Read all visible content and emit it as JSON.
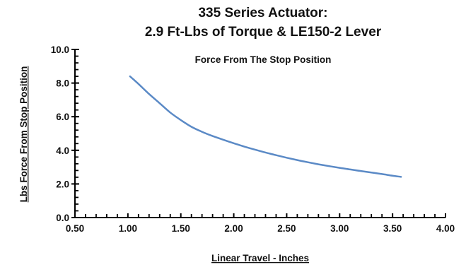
{
  "chart_data": {
    "type": "line",
    "title_line1": "335 Series Actuator:",
    "title_line2": "2.9 Ft-Lbs of Torque & LE150-2 Lever",
    "annotation": "Force From The Stop Position",
    "xlabel": "Linear Travel - Inches",
    "ylabel": "Lbs Force From Stop Position",
    "xlim": [
      0.5,
      4.0
    ],
    "ylim": [
      0.0,
      10.0
    ],
    "x_major_ticks": [
      0.5,
      1.0,
      1.5,
      2.0,
      2.5,
      3.0,
      3.5,
      4.0
    ],
    "x_tick_labels": [
      "0.50",
      "1.00",
      "1.50",
      "2.00",
      "2.50",
      "3.00",
      "3.50",
      "4.00"
    ],
    "x_minor_step": 0.1,
    "y_major_ticks": [
      0,
      2,
      4,
      6,
      8,
      10
    ],
    "y_tick_labels": [
      "0.0",
      "2.0",
      "4.0",
      "6.0",
      "8.0",
      "10.0"
    ],
    "y_minor_step": 0.4,
    "grid": false,
    "legend": "none",
    "series": [
      {
        "color": "#5b8ac6",
        "x": [
          1.02,
          1.1,
          1.2,
          1.3,
          1.4,
          1.5,
          1.6,
          1.7,
          1.8,
          1.9,
          2.0,
          2.1,
          2.2,
          2.3,
          2.4,
          2.5,
          2.6,
          2.7,
          2.8,
          2.9,
          3.0,
          3.1,
          3.2,
          3.3,
          3.4,
          3.5,
          3.58
        ],
        "y": [
          8.4,
          7.95,
          7.35,
          6.8,
          6.25,
          5.8,
          5.4,
          5.1,
          4.85,
          4.63,
          4.42,
          4.22,
          4.04,
          3.87,
          3.71,
          3.56,
          3.42,
          3.29,
          3.17,
          3.06,
          2.96,
          2.86,
          2.77,
          2.68,
          2.59,
          2.49,
          2.42
        ]
      }
    ]
  }
}
